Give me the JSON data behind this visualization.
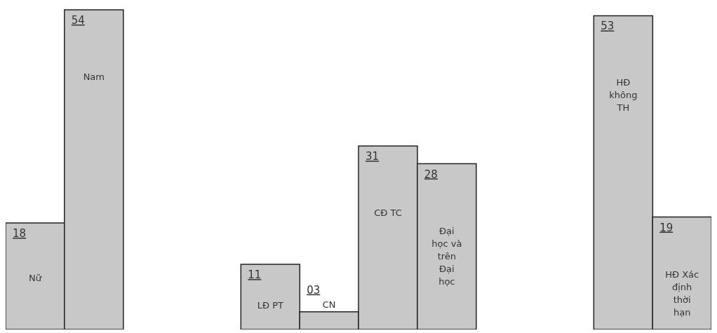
{
  "chart_data": {
    "type": "bar",
    "categories": [
      "Nữ",
      "Nam",
      null,
      null,
      "LĐ PT",
      "CN",
      "CĐ TC",
      "Đại học và trên Đại học",
      null,
      null,
      "HĐ không TH",
      "HĐ Xác định thời hạn"
    ],
    "values": [
      18,
      54,
      null,
      null,
      11,
      3,
      31,
      28,
      null,
      null,
      53,
      19
    ],
    "value_labels": [
      "18",
      "54",
      null,
      null,
      "11",
      "03",
      "31",
      "28",
      null,
      null,
      "53",
      "19"
    ],
    "color": "#c8c8c8"
  }
}
